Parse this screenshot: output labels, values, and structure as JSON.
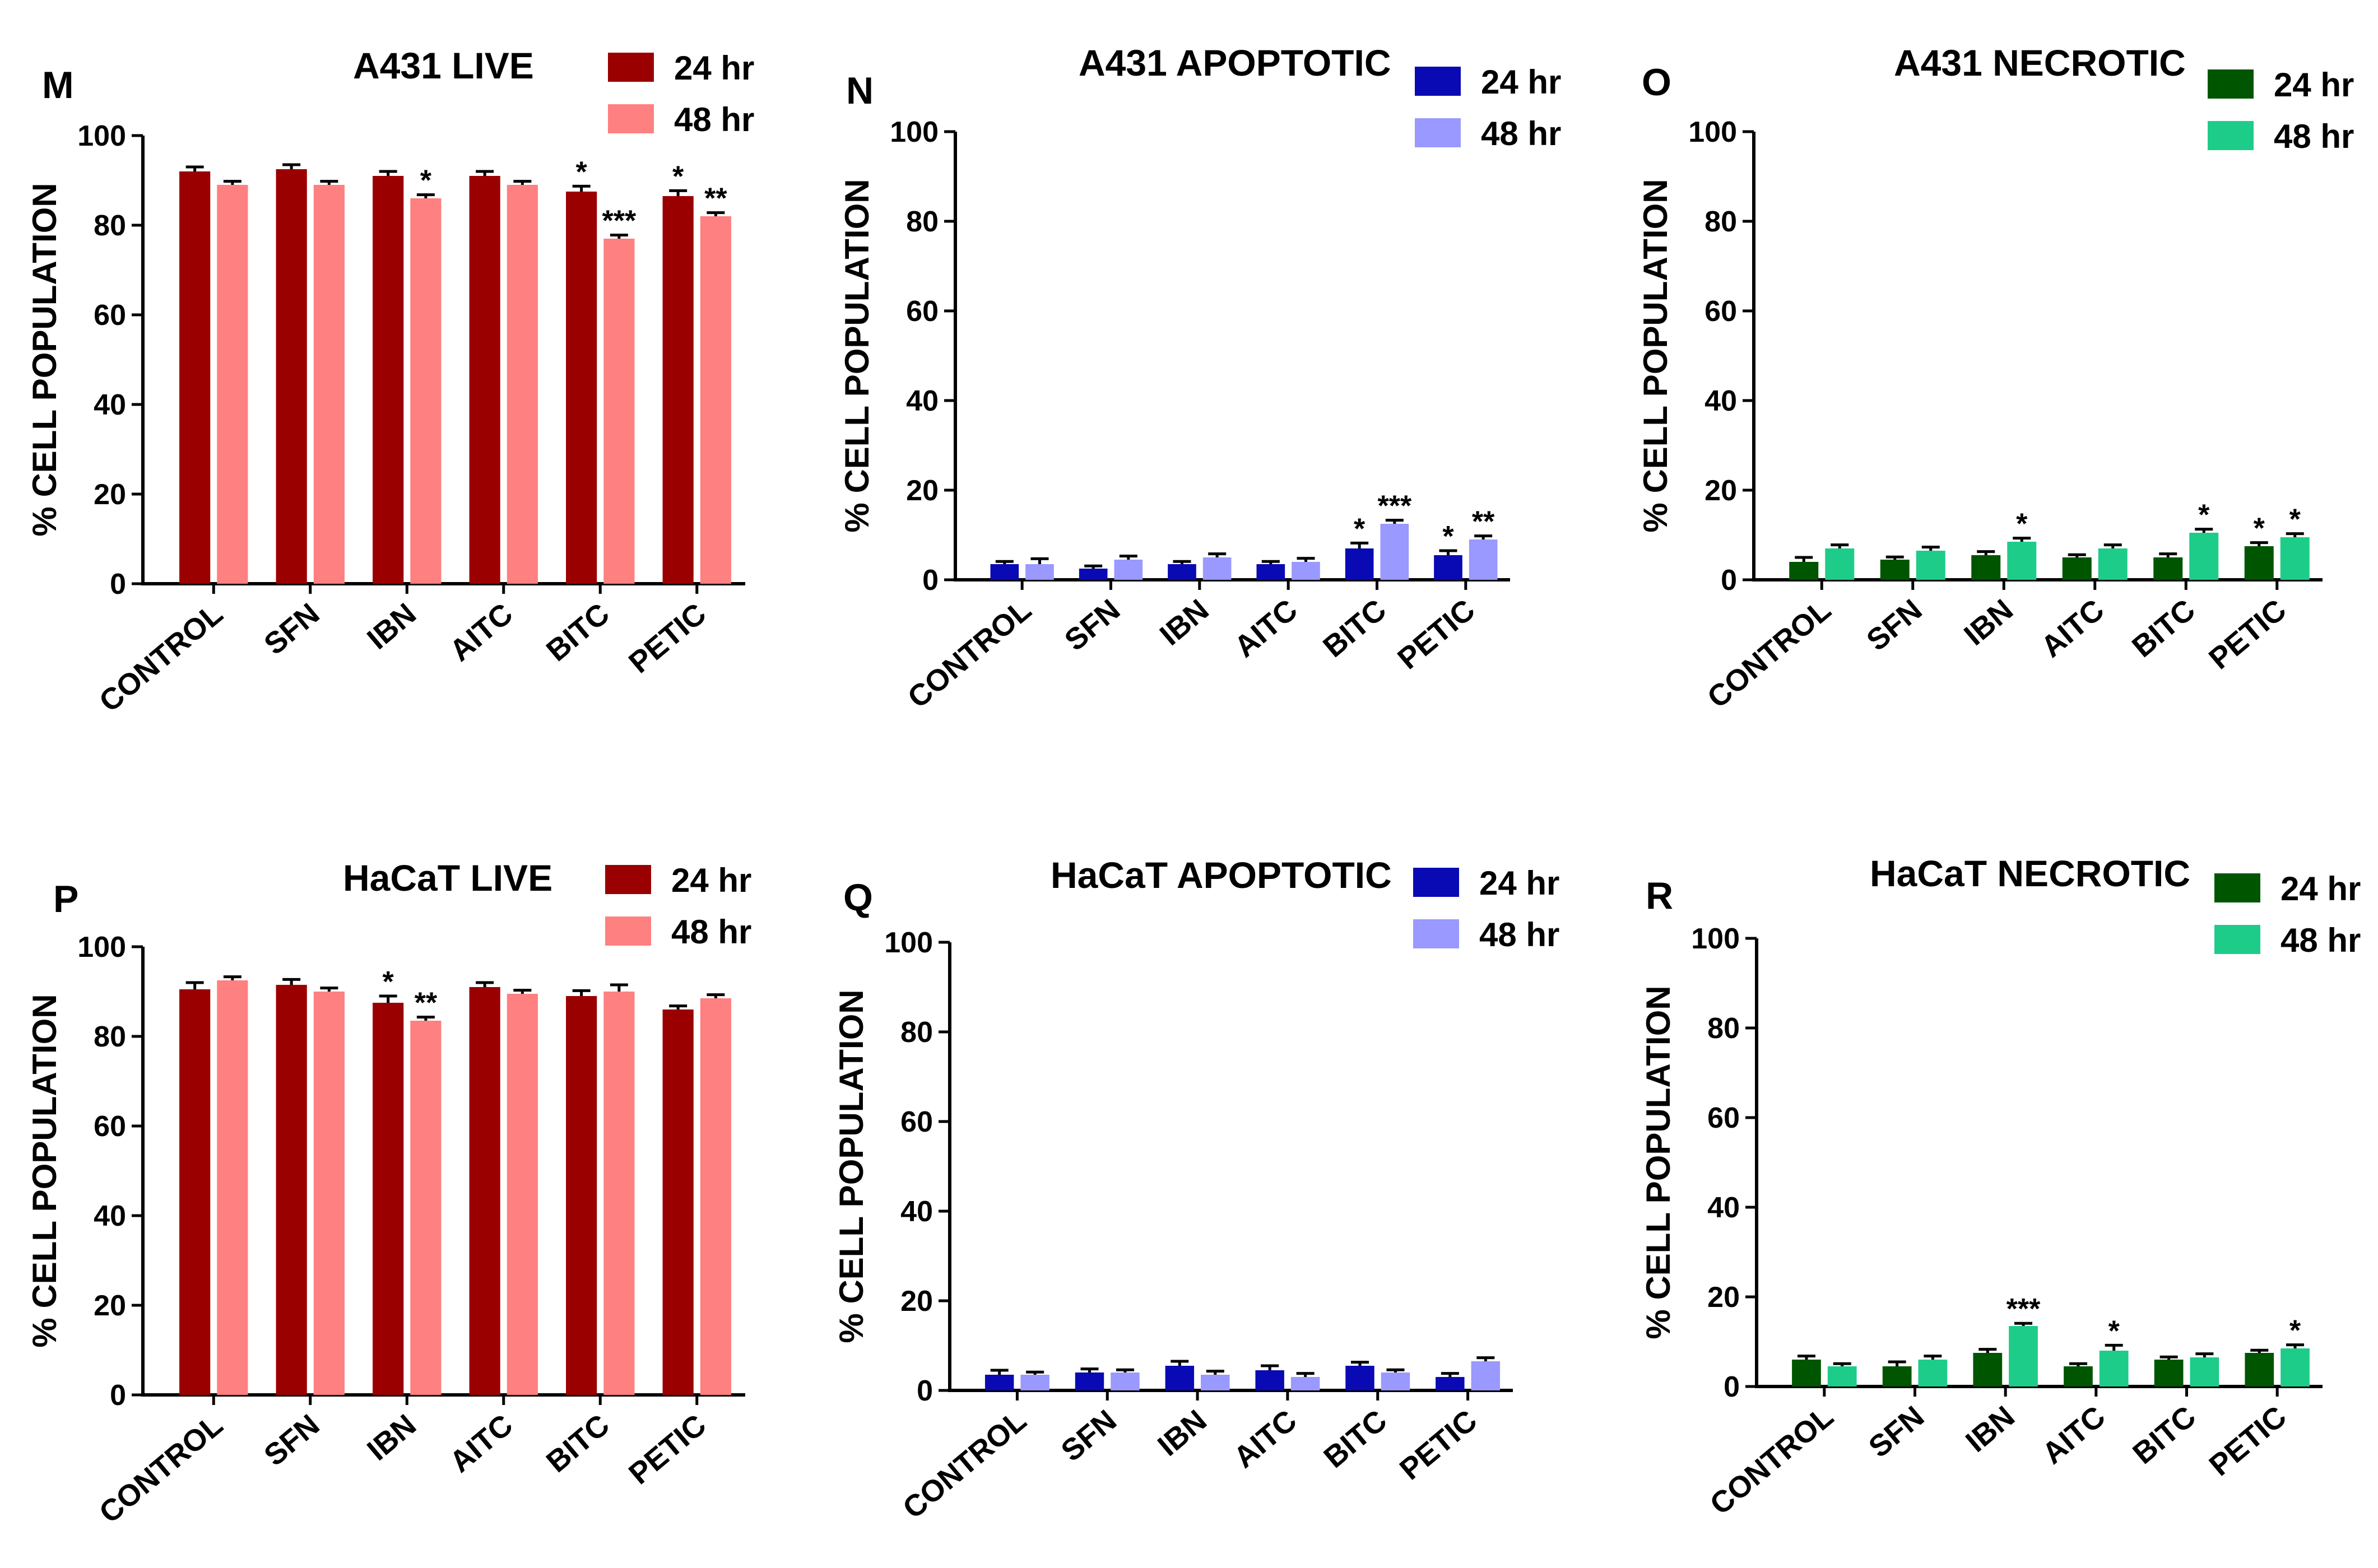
{
  "figure": {
    "panels": [
      {
        "letter": "M",
        "chart_data": {
          "type": "bar",
          "title": "A431 LIVE",
          "ylabel": "% CELL POPULATION",
          "xlabel": "",
          "ylim": [
            0,
            100
          ],
          "yticks": [
            0,
            20,
            40,
            60,
            80,
            100
          ],
          "categories": [
            "CONTROL",
            "SFN",
            "IBN",
            "AITC",
            "BITC",
            "PETIC"
          ],
          "series": [
            {
              "name": "24 hr",
              "color": "#9b0000",
              "values": [
                92,
                92.5,
                91,
                91,
                87.5,
                86.5
              ],
              "errors": [
                1,
                1,
                1,
                1,
                1.2,
                1.2
              ],
              "sig": [
                "",
                "",
                "",
                "",
                "*",
                "*"
              ]
            },
            {
              "name": "48 hr",
              "color": "#ff8080",
              "values": [
                89,
                89,
                86,
                89,
                77,
                82
              ],
              "errors": [
                0.8,
                0.8,
                0.8,
                0.8,
                0.8,
                0.8
              ],
              "sig": [
                "",
                "",
                "*",
                "",
                "***",
                "**"
              ]
            }
          ],
          "legend": "top-right"
        }
      },
      {
        "letter": "N",
        "chart_data": {
          "type": "bar",
          "title": "A431 APOPTOTIC",
          "ylabel": "% CELL POPULATION",
          "xlabel": "",
          "ylim": [
            0,
            100
          ],
          "yticks": [
            0,
            20,
            40,
            60,
            80,
            100
          ],
          "categories": [
            "CONTROL",
            "SFN",
            "IBN",
            "AITC",
            "BITC",
            "PETIC"
          ],
          "series": [
            {
              "name": "24 hr",
              "color": "#0a0ab4",
              "values": [
                3.5,
                2.5,
                3.5,
                3.5,
                7,
                5.5
              ],
              "errors": [
                0.6,
                0.6,
                0.6,
                0.6,
                1.2,
                1
              ],
              "sig": [
                "",
                "",
                "",
                "",
                "*",
                "*"
              ]
            },
            {
              "name": "48 hr",
              "color": "#9999ff",
              "values": [
                3.5,
                4.5,
                5,
                4,
                12.5,
                9
              ],
              "errors": [
                1.2,
                0.8,
                0.8,
                0.8,
                0.8,
                0.8
              ],
              "sig": [
                "",
                "",
                "",
                "",
                "***",
                "**"
              ]
            }
          ],
          "legend": "top-right"
        }
      },
      {
        "letter": "O",
        "chart_data": {
          "type": "bar",
          "title": "A431 NECROTIC",
          "ylabel": "% CELL POPULATION",
          "xlabel": "",
          "ylim": [
            0,
            100
          ],
          "yticks": [
            0,
            20,
            40,
            60,
            80,
            100
          ],
          "categories": [
            "CONTROL",
            "SFN",
            "IBN",
            "AITC",
            "BITC",
            "PETIC"
          ],
          "series": [
            {
              "name": "24 hr",
              "color": "#005500",
              "values": [
                4,
                4.5,
                5.5,
                5,
                5,
                7.5
              ],
              "errors": [
                1,
                0.6,
                0.8,
                0.6,
                0.8,
                0.8
              ],
              "sig": [
                "",
                "",
                "",
                "",
                "",
                "*"
              ]
            },
            {
              "name": "48 hr",
              "color": "#1ecc8a",
              "values": [
                7,
                6.5,
                8.5,
                7,
                10.5,
                9.5
              ],
              "errors": [
                0.8,
                0.8,
                0.8,
                0.8,
                0.8,
                0.8
              ],
              "sig": [
                "",
                "",
                "*",
                "",
                "*",
                "*"
              ]
            }
          ],
          "legend": "top-right"
        }
      },
      {
        "letter": "P",
        "chart_data": {
          "type": "bar",
          "title": "HaCaT LIVE",
          "ylabel": "% CELL POPULATION",
          "xlabel": "",
          "ylim": [
            0,
            100
          ],
          "yticks": [
            0,
            20,
            40,
            60,
            80,
            100
          ],
          "categories": [
            "CONTROL",
            "SFN",
            "IBN",
            "AITC",
            "BITC",
            "PETIC"
          ],
          "series": [
            {
              "name": "24 hr",
              "color": "#9b0000",
              "values": [
                90.5,
                91.5,
                87.5,
                91,
                89,
                86
              ],
              "errors": [
                1.5,
                1.2,
                1.5,
                1,
                1.2,
                0.8
              ],
              "sig": [
                "",
                "",
                "*",
                "",
                "",
                ""
              ]
            },
            {
              "name": "48 hr",
              "color": "#ff8080",
              "values": [
                92.5,
                90,
                83.5,
                89.5,
                90,
                88.5
              ],
              "errors": [
                0.8,
                0.8,
                0.8,
                0.8,
                1.5,
                0.8
              ],
              "sig": [
                "",
                "",
                "**",
                "",
                "",
                ""
              ]
            }
          ],
          "legend": "top-right"
        }
      },
      {
        "letter": "Q",
        "chart_data": {
          "type": "bar",
          "title": "HaCaT  APOPTOTIC",
          "ylabel": "% CELL POPULATION",
          "xlabel": "",
          "ylim": [
            0,
            100
          ],
          "yticks": [
            0,
            20,
            40,
            60,
            80,
            100
          ],
          "categories": [
            "CONTROL",
            "SFN",
            "IBN",
            "AITC",
            "BITC",
            "PETIC"
          ],
          "series": [
            {
              "name": "24 hr",
              "color": "#0a0ab4",
              "values": [
                3.5,
                4,
                5.5,
                4.5,
                5.5,
                3
              ],
              "errors": [
                1,
                0.8,
                1,
                1,
                0.8,
                0.8
              ],
              "sig": [
                "",
                "",
                "",
                "",
                "",
                ""
              ]
            },
            {
              "name": "48 hr",
              "color": "#9999ff",
              "values": [
                3.5,
                4,
                3.5,
                3,
                4,
                6.5
              ],
              "errors": [
                0.6,
                0.6,
                0.8,
                0.8,
                0.6,
                0.8
              ],
              "sig": [
                "",
                "",
                "",
                "",
                "",
                ""
              ]
            }
          ],
          "legend": "top-right"
        }
      },
      {
        "letter": "R",
        "chart_data": {
          "type": "bar",
          "title": "HaCaT NECROTIC",
          "ylabel": "% CELL POPULATION",
          "xlabel": "",
          "ylim": [
            0,
            100
          ],
          "yticks": [
            0,
            20,
            40,
            60,
            80,
            100
          ],
          "categories": [
            "CONTROL",
            "SFN",
            "IBN",
            "AITC",
            "BITC",
            "PETIC"
          ],
          "series": [
            {
              "name": "24 hr",
              "color": "#005500",
              "values": [
                6,
                4.5,
                7.5,
                4.5,
                6,
                7.5
              ],
              "errors": [
                0.8,
                1,
                0.8,
                0.6,
                0.6,
                0.6
              ],
              "sig": [
                "",
                "",
                "",
                "",
                "",
                ""
              ]
            },
            {
              "name": "48 hr",
              "color": "#1ecc8a",
              "values": [
                4.5,
                6,
                13.5,
                8,
                6.5,
                8.5
              ],
              "errors": [
                0.6,
                0.8,
                0.6,
                1.2,
                0.8,
                0.8
              ],
              "sig": [
                "",
                "",
                "***",
                "*",
                "",
                "*"
              ]
            }
          ],
          "legend": "top-right"
        }
      }
    ]
  }
}
